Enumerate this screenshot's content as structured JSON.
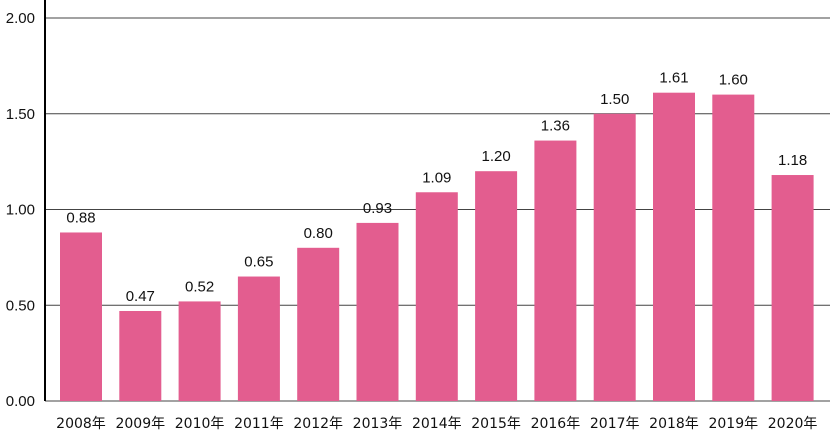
{
  "chart_data": {
    "type": "bar",
    "categories": [
      "2008年",
      "2009年",
      "2010年",
      "2011年",
      "2012年",
      "2013年",
      "2014年",
      "2015年",
      "2016年",
      "2017年",
      "2018年",
      "2019年",
      "2020年"
    ],
    "values": [
      0.88,
      0.47,
      0.52,
      0.65,
      0.8,
      0.93,
      1.09,
      1.2,
      1.36,
      1.5,
      1.61,
      1.6,
      1.18
    ],
    "value_labels": [
      "0.88",
      "0.47",
      "0.52",
      "0.65",
      "0.80",
      "0.93",
      "1.09",
      "1.20",
      "1.36",
      "1.50",
      "1.61",
      "1.60",
      "1.18"
    ],
    "ylim": [
      0,
      2.0
    ],
    "yticks": [
      0,
      0.5,
      1.0,
      1.5,
      2.0
    ],
    "ytick_labels": [
      "0.00",
      "0.50",
      "1.00",
      "1.50",
      "2.00"
    ],
    "grid": true,
    "bar_color": "#e35d8f",
    "title": "",
    "xlabel": "",
    "ylabel": ""
  }
}
